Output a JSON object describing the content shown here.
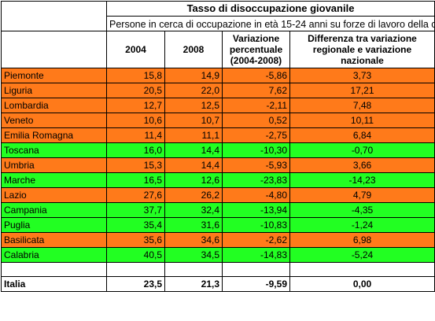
{
  "header": {
    "title": "Tasso di disoccupazione giovanile",
    "subtitle": "Persone in cerca di occupazione in età 15-24 anni su forze di lavoro della corrispondente classe di età (%)"
  },
  "columns": {
    "y2004": "2004",
    "y2008": "2008",
    "variazione": "Variazione percentuale (2004-2008)",
    "differenza": "Differenza tra variazione regionale e variazione nazionale"
  },
  "colors": {
    "orange": "#ff7a1a",
    "green": "#22ff22"
  },
  "rows": [
    {
      "region": "Piemonte",
      "v2004": "15,8",
      "v2008": "14,9",
      "var": "-5,86",
      "diff": "3,73",
      "color": "orange"
    },
    {
      "region": "Liguria",
      "v2004": "20,5",
      "v2008": "22,0",
      "var": "7,62",
      "diff": "17,21",
      "color": "orange"
    },
    {
      "region": "Lombardia",
      "v2004": "12,7",
      "v2008": "12,5",
      "var": "-2,11",
      "diff": "7,48",
      "color": "orange"
    },
    {
      "region": "Veneto",
      "v2004": "10,6",
      "v2008": "10,7",
      "var": "0,52",
      "diff": "10,11",
      "color": "orange"
    },
    {
      "region": "Emilia Romagna",
      "v2004": "11,4",
      "v2008": "11,1",
      "var": "-2,75",
      "diff": "6,84",
      "color": "orange"
    },
    {
      "region": "Toscana",
      "v2004": "16,0",
      "v2008": "14,4",
      "var": "-10,30",
      "diff": "-0,70",
      "color": "green"
    },
    {
      "region": "Umbria",
      "v2004": "15,3",
      "v2008": "14,4",
      "var": "-5,93",
      "diff": "3,66",
      "color": "orange"
    },
    {
      "region": "Marche",
      "v2004": "16,5",
      "v2008": "12,6",
      "var": "-23,83",
      "diff": "-14,23",
      "color": "green"
    },
    {
      "region": "Lazio",
      "v2004": "27,6",
      "v2008": "26,2",
      "var": "-4,80",
      "diff": "4,79",
      "color": "orange"
    },
    {
      "region": "Campania",
      "v2004": "37,7",
      "v2008": "32,4",
      "var": "-13,94",
      "diff": "-4,35",
      "color": "green"
    },
    {
      "region": "Puglia",
      "v2004": "35,4",
      "v2008": "31,6",
      "var": "-10,83",
      "diff": "-1,24",
      "color": "green"
    },
    {
      "region": "Basilicata",
      "v2004": "35,6",
      "v2008": "34,6",
      "var": "-2,62",
      "diff": "6,98",
      "color": "orange"
    },
    {
      "region": "Calabria",
      "v2004": "40,5",
      "v2008": "34,5",
      "var": "-14,83",
      "diff": "-5,24",
      "color": "green"
    }
  ],
  "total": {
    "region": "Italia",
    "v2004": "23,5",
    "v2008": "21,3",
    "var": "-9,59",
    "diff": "0,00"
  }
}
